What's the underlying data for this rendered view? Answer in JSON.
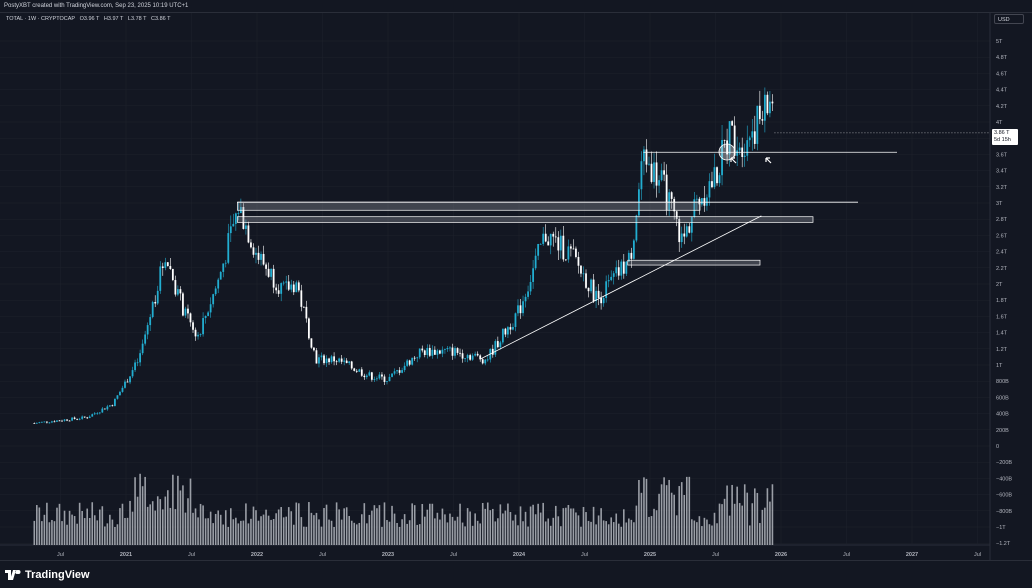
{
  "header": {
    "attribution": "PostyXBT created with TradingView.com, Sep 23, 2025 10:19 UTC+1"
  },
  "symbol": {
    "name": "TOTAL · 1W · CRYPTOCAP",
    "open": "O3.96 T",
    "high": "H3.97 T",
    "low": "L3.78 T",
    "close": "C3.86 T"
  },
  "currency": "USD",
  "last_price": {
    "value": "3.86 T",
    "countdown": "5d 15h"
  },
  "footer": {
    "brand": "TradingView"
  },
  "colors": {
    "background": "#131722",
    "candle_up": "#22aed1",
    "candle_down": "#ffffff",
    "volume": "#c8ccd3",
    "grid": "#1e222d"
  },
  "chart_data": {
    "type": "candlestick",
    "price_unit": "USD",
    "price_axis_labels": [
      "5T",
      "4.8T",
      "4.6T",
      "4.4T",
      "4.2T",
      "4T",
      "3.8T",
      "3.6T",
      "3.4T",
      "3.2T",
      "3T",
      "2.8T",
      "2.6T",
      "2.4T",
      "2.2T",
      "2T",
      "1.8T",
      "1.6T",
      "1.4T",
      "1.2T",
      "1T",
      "800B",
      "600B",
      "400B",
      "200B",
      "0",
      "−200B",
      "−400B",
      "−600B",
      "−800B",
      "−1T",
      "−1.2T"
    ],
    "time_axis_labels": [
      "Jul",
      "2021",
      "Jul",
      "2022",
      "Jul",
      "2023",
      "Jul",
      "2024",
      "Jul",
      "2025",
      "Jul",
      "2026",
      "Jul",
      "2027",
      "Jul"
    ],
    "price_path_anchors": [
      {
        "t": 2020.3,
        "p": 0.26
      },
      {
        "t": 2020.7,
        "p": 0.33
      },
      {
        "t": 2020.9,
        "p": 0.5
      },
      {
        "t": 2021.1,
        "p": 1.05
      },
      {
        "t": 2021.3,
        "p": 2.35
      },
      {
        "t": 2021.45,
        "p": 1.6
      },
      {
        "t": 2021.55,
        "p": 1.35
      },
      {
        "t": 2021.7,
        "p": 2.0
      },
      {
        "t": 2021.86,
        "p": 2.95
      },
      {
        "t": 2022.0,
        "p": 2.35
      },
      {
        "t": 2022.2,
        "p": 1.9
      },
      {
        "t": 2022.3,
        "p": 2.0
      },
      {
        "t": 2022.45,
        "p": 1.05
      },
      {
        "t": 2022.6,
        "p": 1.05
      },
      {
        "t": 2022.85,
        "p": 0.85
      },
      {
        "t": 2023.0,
        "p": 0.8
      },
      {
        "t": 2023.25,
        "p": 1.15
      },
      {
        "t": 2023.5,
        "p": 1.15
      },
      {
        "t": 2023.75,
        "p": 1.05
      },
      {
        "t": 2024.0,
        "p": 1.65
      },
      {
        "t": 2024.2,
        "p": 2.6
      },
      {
        "t": 2024.4,
        "p": 2.35
      },
      {
        "t": 2024.6,
        "p": 1.8
      },
      {
        "t": 2024.85,
        "p": 2.3
      },
      {
        "t": 2024.95,
        "p": 3.6
      },
      {
        "t": 2025.1,
        "p": 3.2
      },
      {
        "t": 2025.25,
        "p": 2.5
      },
      {
        "t": 2025.35,
        "p": 3.0
      },
      {
        "t": 2025.5,
        "p": 3.3
      },
      {
        "t": 2025.6,
        "p": 3.85
      },
      {
        "t": 2025.7,
        "p": 3.75
      },
      {
        "t": 2025.85,
        "p": 4.05
      },
      {
        "t": 2025.95,
        "p": 4.35
      }
    ],
    "horizontal_levels_T": [
      3.62,
      3.0
    ],
    "zones_T": [
      [
        2.9,
        3.0
      ],
      [
        2.75,
        2.82
      ],
      [
        2.22,
        2.28
      ]
    ],
    "trendline": [
      {
        "t": 2023.7,
        "p": 1.05
      },
      {
        "t": 2025.85,
        "p": 2.83
      }
    ],
    "annotations": [
      "circle at ~3.7T mid-2025",
      "two up-arrows near 3.5T"
    ]
  }
}
